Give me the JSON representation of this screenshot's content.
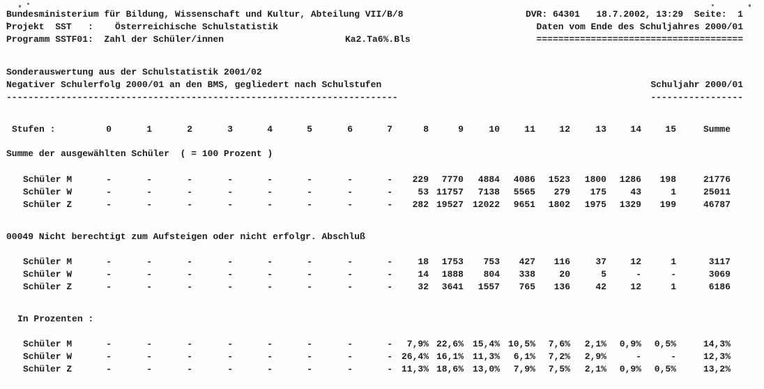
{
  "header": {
    "left_lines": [
      "Bundesministerium für Bildung, Wissenschaft und Kultur, Abteilung VII/B/8",
      "Projekt  SST   :    Österreichische Schulstatistik",
      "Programm SSTF01:  Zahl der Schüler/innen"
    ],
    "reference": "Ka2.Ta6%.Bls",
    "right_lines": [
      "DVR: 64301   18.7.2002, 13:29  Seite:  1",
      "Daten vom Ende des Schuljahres 2000/01",
      "======================================"
    ]
  },
  "title": {
    "line1": "Sonderauswertung aus der Schulstatistik 2001/02",
    "line2": "Negativer Schulerfolg 2000/01 an den BMS, gegliedert nach Schulstufen",
    "underline": "------------------------------------------------------------------------",
    "schuljahr": "Schuljahr 2000/01",
    "schuljahr_underline": "-----------------"
  },
  "table": {
    "stufen_label": "Stufen :",
    "columns": [
      "0",
      "1",
      "2",
      "3",
      "4",
      "5",
      "6",
      "7",
      "8",
      "9",
      "10",
      "11",
      "12",
      "13",
      "14",
      "15",
      "Summe"
    ],
    "sections": [
      {
        "heading": "Summe der ausgewählten Schüler  ( = 100 Prozent )",
        "rows": [
          {
            "label": "Schüler M",
            "cells": [
              "-",
              "-",
              "-",
              "-",
              "-",
              "-",
              "-",
              "-",
              "229",
              "7770",
              "4884",
              "4086",
              "1523",
              "1800",
              "1286",
              "198",
              "21776"
            ]
          },
          {
            "label": "Schüler W",
            "cells": [
              "-",
              "-",
              "-",
              "-",
              "-",
              "-",
              "-",
              "-",
              "53",
              "11757",
              "7138",
              "5565",
              "279",
              "175",
              "43",
              "1",
              "25011"
            ]
          },
          {
            "label": "Schüler Z",
            "cells": [
              "-",
              "-",
              "-",
              "-",
              "-",
              "-",
              "-",
              "-",
              "282",
              "19527",
              "12022",
              "9651",
              "1802",
              "1975",
              "1329",
              "199",
              "46787"
            ]
          }
        ]
      },
      {
        "heading": "00049 Nicht berechtigt zum Aufsteigen oder nicht erfolgr. Abschluß",
        "rows": [
          {
            "label": "Schüler M",
            "cells": [
              "-",
              "-",
              "-",
              "-",
              "-",
              "-",
              "-",
              "-",
              "18",
              "1753",
              "753",
              "427",
              "116",
              "37",
              "12",
              "1",
              "3117"
            ]
          },
          {
            "label": "Schüler W",
            "cells": [
              "-",
              "-",
              "-",
              "-",
              "-",
              "-",
              "-",
              "-",
              "14",
              "1888",
              "804",
              "338",
              "20",
              "5",
              "-",
              "-",
              "3069"
            ]
          },
          {
            "label": "Schüler Z",
            "cells": [
              "-",
              "-",
              "-",
              "-",
              "-",
              "-",
              "-",
              "-",
              "32",
              "3641",
              "1557",
              "765",
              "136",
              "42",
              "12",
              "1",
              "6186"
            ]
          }
        ]
      },
      {
        "heading": "In Prozenten :",
        "rows": [
          {
            "label": "Schüler M",
            "cells": [
              "-",
              "-",
              "-",
              "-",
              "-",
              "-",
              "-",
              "-",
              "7,9%",
              "22,6%",
              "15,4%",
              "10,5%",
              "7,6%",
              "2,1%",
              "0,9%",
              "0,5%",
              "14,3%"
            ]
          },
          {
            "label": "Schüler W",
            "cells": [
              "-",
              "-",
              "-",
              "-",
              "-",
              "-",
              "-",
              "-",
              "26,4%",
              "16,1%",
              "11,3%",
              "6,1%",
              "7,2%",
              "2,9%",
              "-",
              "-",
              "12,3%"
            ]
          },
          {
            "label": "Schüler Z",
            "cells": [
              "-",
              "-",
              "-",
              "-",
              "-",
              "-",
              "-",
              "-",
              "11,3%",
              "18,6%",
              "13,0%",
              "7,9%",
              "7,5%",
              "2,1%",
              "0,9%",
              "0,5%",
              "13,2%"
            ]
          }
        ]
      }
    ]
  }
}
